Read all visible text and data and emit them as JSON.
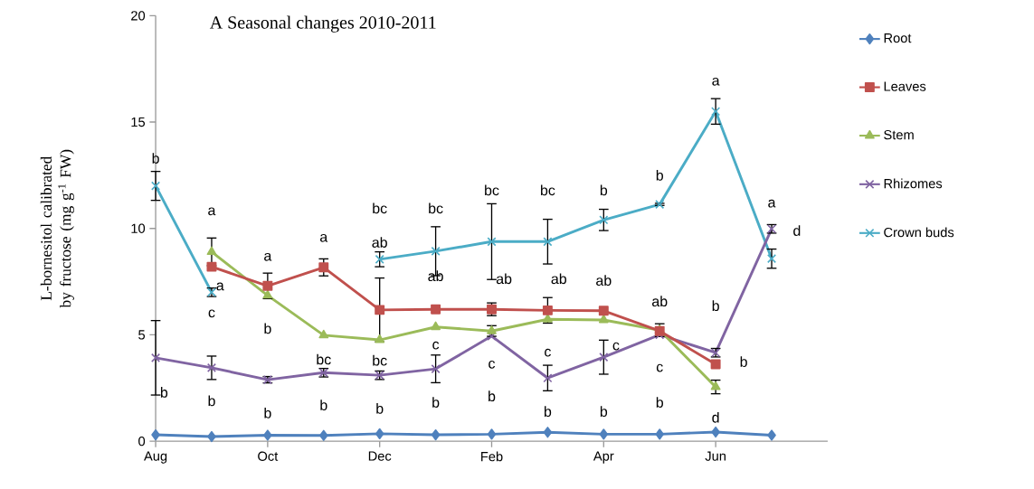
{
  "chart_data": {
    "type": "line",
    "title": "A    Seasonal changes 2010-2011",
    "ylabel": "L-bornesitol calibrated by fructose (mg g$^{-1}$ FW)",
    "categories": [
      "Aug",
      null,
      "Oct",
      null,
      "Dec",
      null,
      "Feb",
      null,
      "Apr",
      null,
      "Jun",
      null
    ],
    "ylim": [
      0,
      20
    ],
    "yticks": [
      0,
      5,
      10,
      15,
      20
    ],
    "legend": "right",
    "grid": false,
    "series": [
      {
        "name": "Root",
        "color": "#4f81bd",
        "marker": "diamond",
        "values": [
          0.3,
          0.22,
          0.28,
          0.27,
          0.35,
          0.3,
          0.33,
          0.42,
          0.33,
          0.33,
          0.43,
          0.28
        ],
        "errors": [
          null,
          null,
          null,
          null,
          null,
          null,
          null,
          null,
          null,
          null,
          null,
          null
        ]
      },
      {
        "name": "Leaves",
        "color": "#c0504d",
        "marker": "square",
        "values": [
          null,
          8.2,
          7.3,
          8.17,
          6.17,
          6.2,
          6.2,
          6.15,
          6.13,
          5.18,
          3.62,
          null
        ],
        "errors": [
          null,
          null,
          0.6,
          0.4,
          1.5,
          null,
          0.3,
          0.6,
          null,
          null,
          null,
          null
        ]
      },
      {
        "name": "Stem",
        "color": "#9bbb59",
        "marker": "triangle",
        "values": [
          null,
          8.9,
          6.85,
          4.98,
          4.76,
          5.37,
          5.18,
          5.73,
          5.7,
          5.22,
          2.55,
          null
        ],
        "errors": [
          null,
          0.65,
          null,
          null,
          null,
          null,
          0.25,
          null,
          null,
          0.3,
          0.32,
          null
        ]
      },
      {
        "name": "Rhizomes",
        "color": "#8064a2",
        "marker": "cross",
        "values": [
          3.92,
          3.45,
          2.89,
          3.22,
          3.1,
          3.4,
          4.94,
          2.97,
          3.95,
          5.0,
          4.16,
          9.98
        ],
        "errors": [
          1.75,
          0.55,
          0.15,
          0.2,
          0.2,
          0.65,
          null,
          0.6,
          0.8,
          null,
          0.2,
          0.2
        ]
      },
      {
        "name": "Crown buds",
        "color": "#4bacc6",
        "marker": "cross",
        "values": [
          12.0,
          7.0,
          null,
          null,
          8.55,
          8.93,
          9.38,
          9.38,
          10.4,
          11.13,
          15.5,
          8.58
        ],
        "errors": [
          0.68,
          0.2,
          null,
          null,
          0.35,
          1.15,
          1.78,
          1.05,
          0.5,
          0.05,
          0.6,
          0.45
        ]
      }
    ],
    "annotations": [
      "b",
      "b",
      "a",
      "a",
      "c",
      "b",
      "a",
      "b",
      "b",
      "a",
      "bc",
      "b",
      "bc",
      "ab",
      "bc",
      "b",
      "bc",
      "ab",
      "c",
      "b",
      "bc",
      "ab",
      "c",
      "b",
      "bc",
      "ab",
      "c",
      "b",
      "b",
      "ab",
      "c",
      "b",
      "b",
      "ab",
      "c",
      "b",
      "a",
      "b",
      "b",
      "d",
      "a",
      "d"
    ]
  }
}
